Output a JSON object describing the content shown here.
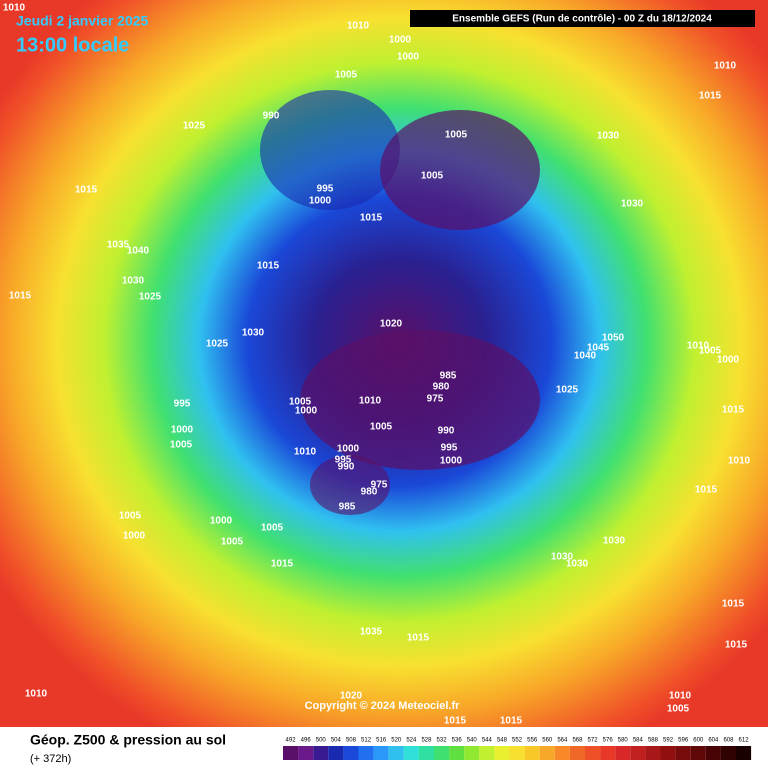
{
  "header": {
    "date": "Jeudi 2 janvier 2025",
    "time": "13:00 locale",
    "run": "Ensemble GEFS  (Run de contrôle)  - 00 Z du 18/12/2024"
  },
  "footer": {
    "title": "Géop. Z500 & pression au sol",
    "lead": "(+ 372h)",
    "copyright": "Copyright © 2024 Meteociel.fr"
  },
  "pressure_labels": [
    1010,
    1010,
    1000,
    1000,
    1005,
    1010,
    1015,
    990,
    1025,
    1005,
    1030,
    1015,
    1005,
    995,
    1000,
    1030,
    1015,
    1035,
    1040,
    1015,
    1030,
    1025,
    1015,
    1020,
    1030,
    1050,
    1045,
    1025,
    1040,
    1010,
    1005,
    1000,
    985,
    980,
    975,
    1025,
    995,
    1005,
    1000,
    1010,
    1000,
    1005,
    990,
    1015,
    1005,
    995,
    1000,
    1010,
    1000,
    995,
    990,
    1010,
    975,
    980,
    985,
    1015,
    1005,
    1000,
    1005,
    1000,
    1005,
    1030,
    1030,
    1030,
    1015,
    1035,
    1015,
    1015,
    1015,
    1010,
    1020,
    1010,
    1005,
    1015,
    1015
  ],
  "scale": {
    "values": [
      492,
      496,
      500,
      504,
      508,
      512,
      516,
      520,
      524,
      528,
      532,
      536,
      540,
      544,
      548,
      552,
      556,
      560,
      564,
      568,
      572,
      576,
      580,
      584,
      588,
      592,
      596,
      600,
      604,
      608,
      612
    ],
    "colors": [
      "#5a1068",
      "#6a1a8a",
      "#3a1a90",
      "#1a2ab0",
      "#1a48d8",
      "#2070f0",
      "#2a98f8",
      "#30c0f0",
      "#30e0d8",
      "#30e0a0",
      "#40e070",
      "#60e040",
      "#90e830",
      "#c0f030",
      "#e8f030",
      "#f8e030",
      "#f8c828",
      "#f8a828",
      "#f88828",
      "#f06828",
      "#f05028",
      "#e83828",
      "#d82828",
      "#c02020",
      "#a81818",
      "#901010",
      "#780c0c",
      "#600808",
      "#480404",
      "#300202",
      "#180000"
    ]
  }
}
